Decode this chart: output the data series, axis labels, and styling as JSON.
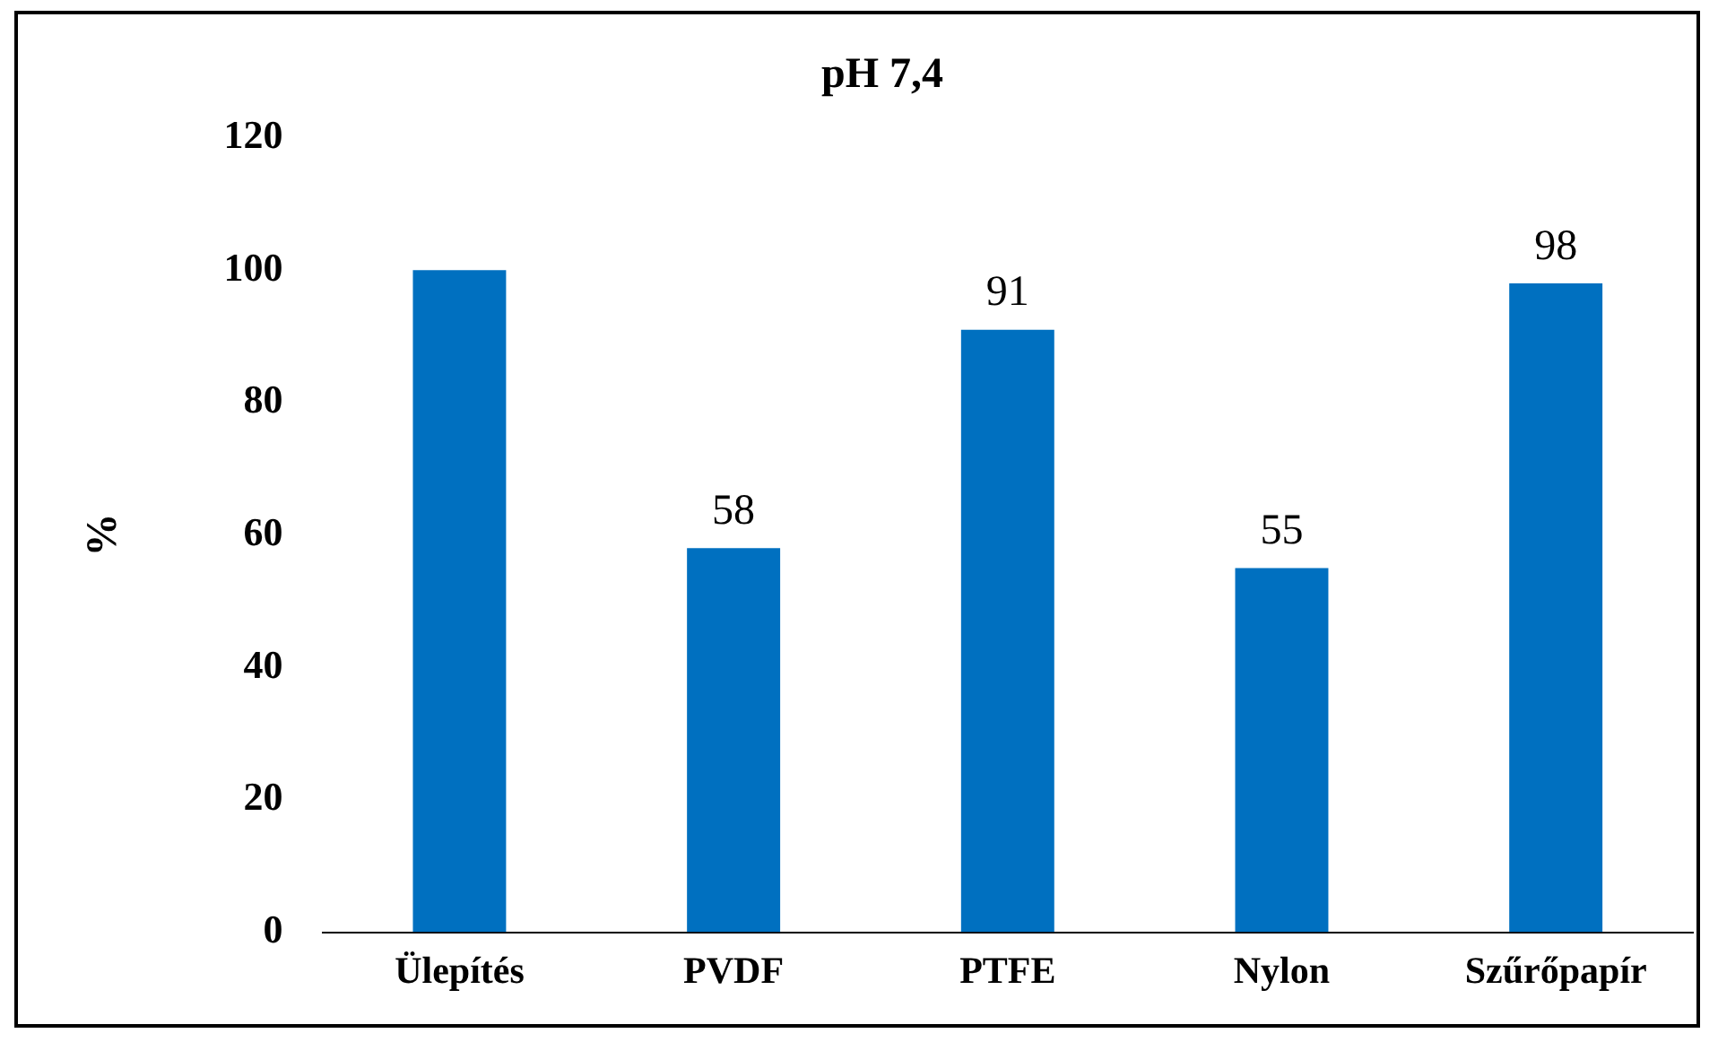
{
  "chart_data": {
    "type": "bar",
    "title": "pH 7,4",
    "ylabel": "%",
    "categories": [
      "Ülepítés",
      "PVDF",
      "PTFE",
      "Nylon",
      "Szűrőpapír"
    ],
    "values": [
      100,
      58,
      91,
      55,
      98
    ],
    "value_labels": [
      null,
      "58",
      "91",
      "55",
      "98"
    ],
    "color": "#0070c0",
    "ylim": [
      0,
      120
    ],
    "yticks": [
      0,
      20,
      40,
      60,
      80,
      100,
      120
    ],
    "grid": false,
    "legend": false
  }
}
